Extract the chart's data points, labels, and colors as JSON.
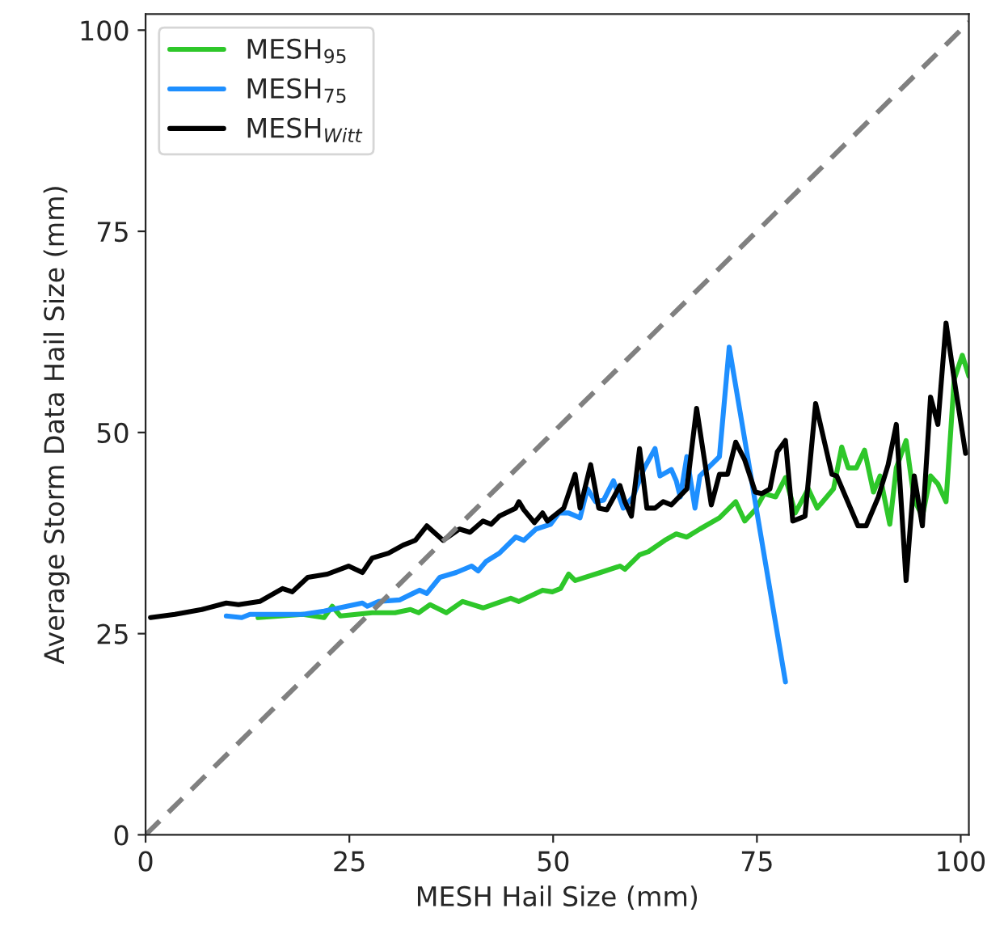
{
  "chart_data": {
    "type": "line",
    "xlabel": "MESH Hail Size (mm)",
    "ylabel": "Average Storm Data Hail Size (mm)",
    "xlim": [
      0,
      101
    ],
    "ylim": [
      0,
      102
    ],
    "xticks": [
      0,
      25,
      50,
      75,
      100
    ],
    "yticks": [
      0,
      25,
      50,
      75,
      100
    ],
    "grid": false,
    "legend": "top left",
    "series": [
      {
        "name": "MESH$_{95}$",
        "color": "#2ec72a",
        "x": [
          13.8,
          19.3,
          21.9,
          22.9,
          23.9,
          27.8,
          30.6,
          32.5,
          33.5,
          34.9,
          36.9,
          38.9,
          41.4,
          44.8,
          45.8,
          48.7,
          49.9,
          50.9,
          51.9,
          52.7,
          55.8,
          58.2,
          58.8,
          60.6,
          61.7,
          63.7,
          65.1,
          66.4,
          68,
          70.4,
          72.4,
          73.5,
          74.8,
          75.9,
          77.3,
          78.5,
          79.7,
          81.3,
          82.4,
          84.4,
          85.4,
          86.2,
          87.2,
          88.2,
          89.3,
          90.1,
          91.3,
          92.1,
          93.3,
          94.3,
          95.3,
          96.3,
          97.2,
          98.2,
          99.2,
          100.2,
          101
        ],
        "values": [
          27,
          27.4,
          27,
          28.4,
          27.2,
          27.6,
          27.6,
          28,
          27.6,
          28.6,
          27.6,
          29,
          28.2,
          29.4,
          29,
          30.4,
          30.2,
          30.6,
          32.4,
          31.6,
          32.6,
          33.4,
          33,
          34.8,
          35.2,
          36.6,
          37.4,
          37,
          38,
          39.4,
          41.4,
          39,
          40.4,
          42.4,
          42,
          44.4,
          40,
          43,
          40.6,
          43,
          48.2,
          45.6,
          45.6,
          47.8,
          42.6,
          44.6,
          38.6,
          45.6,
          49,
          41.6,
          39.6,
          44.6,
          43.6,
          41.4,
          56.6,
          59.6,
          57
        ]
      },
      {
        "name": "MESH$_{75}$",
        "color": "#1e8fff",
        "x": [
          9.9,
          11.8,
          12.8,
          16,
          19.3,
          21.9,
          24.7,
          26.6,
          27.2,
          28.6,
          31.2,
          33.6,
          34.5,
          36.1,
          38.1,
          40,
          40.8,
          41.8,
          43.4,
          45.4,
          46.4,
          47.9,
          49.7,
          50.7,
          51.9,
          53.3,
          54.2,
          55.2,
          56.2,
          57.4,
          58.6,
          59.8,
          61.1,
          62.5,
          63.1,
          64.5,
          65.1,
          65.6,
          66.4,
          67.4,
          68,
          70.4,
          71.6,
          78.5
        ],
        "values": [
          27.2,
          27,
          27.4,
          27.4,
          27.4,
          27.8,
          28.4,
          28.8,
          28.4,
          29,
          29.2,
          30.4,
          30,
          32,
          32.6,
          33.4,
          32.8,
          34,
          35,
          37,
          36.6,
          38,
          38.6,
          40,
          40,
          39.4,
          43,
          41.4,
          41.6,
          44,
          40.6,
          42,
          45.4,
          48,
          44.6,
          45.4,
          44,
          42,
          47,
          40.6,
          44.6,
          47,
          60.6,
          19
        ]
      },
      {
        "name": "MESH$_{Witt}$",
        "color": "#000000",
        "x": [
          0.6,
          3.6,
          6.9,
          9.9,
          11.4,
          14,
          16.8,
          18,
          19.9,
          22.3,
          24.9,
          26.6,
          27.8,
          29.8,
          31.6,
          33.1,
          34.5,
          36.5,
          38.5,
          39.8,
          41.4,
          42.4,
          43.4,
          45.4,
          45.8,
          46.4,
          47.7,
          48.7,
          49.3,
          51.3,
          52.7,
          53.3,
          54.6,
          55.6,
          56.6,
          58.2,
          58.8,
          59.6,
          60.6,
          61.5,
          62.5,
          63.5,
          64.5,
          66.4,
          67.6,
          69.4,
          70.4,
          71.4,
          72.4,
          73.5,
          74.8,
          75.6,
          76.6,
          77.5,
          78.5,
          79.4,
          80.9,
          82.2,
          84.2,
          84.8,
          87.4,
          88.4,
          89.9,
          91.1,
          92.1,
          93.3,
          94.3,
          95.3,
          96.3,
          97.2,
          98.2,
          99.2,
          100.6
        ],
        "values": [
          27,
          27.4,
          28,
          28.8,
          28.6,
          29,
          30.6,
          30.2,
          32,
          32.4,
          33.4,
          32.6,
          34.4,
          35,
          36,
          36.6,
          38.4,
          36.6,
          38,
          37.6,
          39,
          38.6,
          39.6,
          40.6,
          41.4,
          40.4,
          38.8,
          40,
          39,
          40.6,
          44.8,
          40.6,
          46,
          40.6,
          40.4,
          43.4,
          41.4,
          39.6,
          48,
          40.6,
          40.6,
          41.4,
          41,
          43,
          53,
          41,
          44.8,
          44.8,
          48.8,
          46.6,
          42.6,
          42.4,
          43,
          47.6,
          49,
          39,
          39.6,
          53.6,
          44.8,
          44.6,
          38.4,
          38.4,
          42,
          46,
          51,
          31.6,
          44.6,
          38.4,
          54.4,
          51,
          63.6,
          56.6,
          47.4
        ]
      },
      {
        "color": "#808080",
        "line_style": "dashed",
        "x": [
          0,
          101
        ],
        "values": [
          0,
          101
        ]
      }
    ]
  }
}
